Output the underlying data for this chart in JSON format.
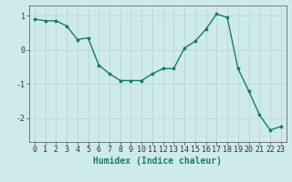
{
  "x": [
    0,
    1,
    2,
    3,
    4,
    5,
    6,
    7,
    8,
    9,
    10,
    11,
    12,
    13,
    14,
    15,
    16,
    17,
    18,
    19,
    20,
    21,
    22,
    23
  ],
  "y": [
    0.9,
    0.85,
    0.85,
    0.7,
    0.3,
    0.35,
    -0.45,
    -0.7,
    -0.9,
    -0.9,
    -0.9,
    -0.7,
    -0.55,
    -0.55,
    0.05,
    0.25,
    0.6,
    1.05,
    0.95,
    -0.55,
    -1.2,
    -1.9,
    -2.35,
    -2.25
  ],
  "line_color": "#1a7a6e",
  "marker": "*",
  "marker_size": 2.5,
  "bg_color": "#ceeaea",
  "grid_color": "#b8d8d8",
  "xlabel": "Humidex (Indice chaleur)",
  "xlim": [
    -0.5,
    23.5
  ],
  "ylim": [
    -2.7,
    1.3
  ],
  "yticks": [
    -2,
    -1,
    0,
    1
  ],
  "xticks": [
    0,
    1,
    2,
    3,
    4,
    5,
    6,
    7,
    8,
    9,
    10,
    11,
    12,
    13,
    14,
    15,
    16,
    17,
    18,
    19,
    20,
    21,
    22,
    23
  ],
  "xlabel_fontsize": 7,
  "tick_fontsize": 6,
  "line_width": 1.0
}
